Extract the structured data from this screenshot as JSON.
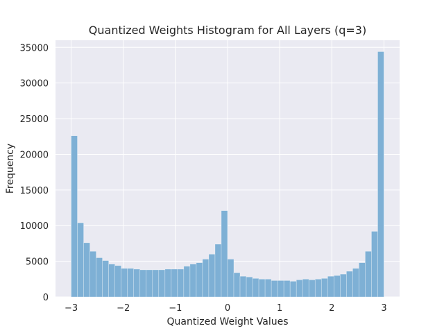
{
  "chart_data": {
    "type": "bar",
    "title": "Quantized Weights Histogram for All Layers (q=3)",
    "xlabel": "Quantized Weight Values",
    "ylabel": "Frequency",
    "xlim": [
      -3.3,
      3.3
    ],
    "ylim": [
      0,
      36000
    ],
    "xticks": [
      -3,
      -2,
      -1,
      0,
      1,
      2,
      3
    ],
    "xtick_labels": [
      "−3",
      "−2",
      "−1",
      "0",
      "1",
      "2",
      "3"
    ],
    "yticks": [
      0,
      5000,
      10000,
      15000,
      20000,
      25000,
      30000,
      35000
    ],
    "ytick_labels": [
      "0",
      "5000",
      "10000",
      "15000",
      "20000",
      "25000",
      "30000",
      "35000"
    ],
    "grid": true,
    "legend": "none",
    "bins": 50,
    "bin_range": [
      -3,
      3
    ],
    "values": [
      22600,
      10400,
      7600,
      6400,
      5500,
      5100,
      4600,
      4400,
      4000,
      4000,
      3900,
      3800,
      3800,
      3800,
      3800,
      3900,
      3900,
      3900,
      4300,
      4600,
      4800,
      5300,
      6000,
      7400,
      12100,
      5300,
      3400,
      2900,
      2800,
      2600,
      2500,
      2500,
      2300,
      2300,
      2300,
      2200,
      2400,
      2500,
      2400,
      2500,
      2600,
      2900,
      3000,
      3200,
      3600,
      4000,
      4800,
      6400,
      9200,
      34400
    ],
    "colors": {
      "bar": "#7eb0d5",
      "plot_bg": "#eaeaf2",
      "grid": "#ffffff",
      "text": "#262626"
    }
  }
}
